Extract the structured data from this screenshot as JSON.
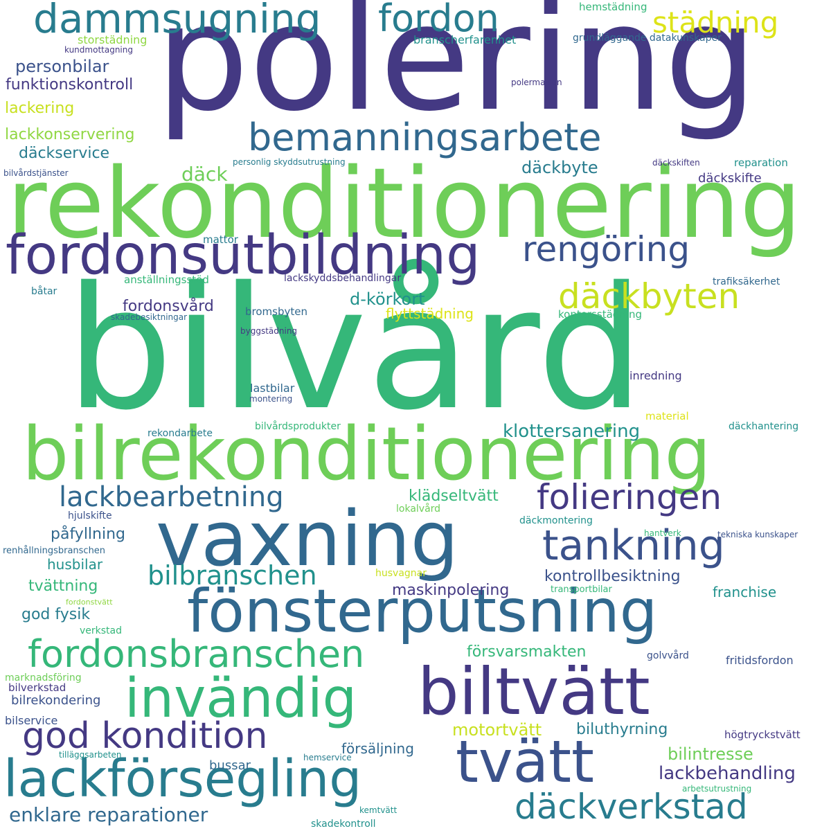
{
  "palette": {
    "background": "#ffffff",
    "dark_purple": "#443983",
    "indigo": "#3b528b",
    "blue": "#31688e",
    "teal_blue": "#287c8e",
    "teal": "#21918c",
    "green_teal": "#35b779",
    "light_green": "#6ece58",
    "lime": "#90d743",
    "yellow_green": "#c8e020",
    "yellow": "#dde318"
  },
  "words": [
    {
      "text": "bilvård"
    },
    {
      "text": "polering"
    },
    {
      "text": "rekonditionering"
    },
    {
      "text": "bilrekonditionering"
    },
    {
      "text": "vaxning"
    },
    {
      "text": "fönsterputsning"
    },
    {
      "text": "fordonsutbildning"
    },
    {
      "text": "biltvätt"
    },
    {
      "text": "invändig"
    },
    {
      "text": "tvätt"
    },
    {
      "text": "lackförsegling"
    },
    {
      "text": "dammsugning"
    },
    {
      "text": "bemanningsarbete"
    },
    {
      "text": "fordonsbranschen"
    },
    {
      "text": "tankning"
    },
    {
      "text": "fordon"
    },
    {
      "text": "god kondition"
    },
    {
      "text": "rengöring"
    },
    {
      "text": "folieringen"
    },
    {
      "text": "däckbyten"
    },
    {
      "text": "däckverkstad"
    },
    {
      "text": "lackbearbetning"
    },
    {
      "text": "bilbranschen"
    },
    {
      "text": "städning"
    },
    {
      "text": "enklare reparationer"
    },
    {
      "text": "klottersanering"
    },
    {
      "text": "lackbehandling"
    },
    {
      "text": "d-körkort"
    },
    {
      "text": "däck"
    },
    {
      "text": "däckbyte"
    },
    {
      "text": "personbilar"
    },
    {
      "text": "bilintresse"
    },
    {
      "text": "motortvätt"
    },
    {
      "text": "funktionskontroll"
    },
    {
      "text": "lackkonservering"
    },
    {
      "text": "biluthyrning"
    },
    {
      "text": "kontrollbesiktning"
    },
    {
      "text": "maskinpolering"
    },
    {
      "text": "lackering"
    },
    {
      "text": "fordonsvård"
    },
    {
      "text": "klädseltvätt"
    },
    {
      "text": "påfyllning"
    },
    {
      "text": "försvarsmakten"
    },
    {
      "text": "god fysik"
    },
    {
      "text": "däckservice"
    },
    {
      "text": "tvättning"
    },
    {
      "text": "franchise"
    },
    {
      "text": "husbilar"
    },
    {
      "text": "flyttstädning"
    },
    {
      "text": "försäljning"
    },
    {
      "text": "däckskifte"
    },
    {
      "text": "bussar"
    },
    {
      "text": "bilrekondering"
    },
    {
      "text": "branscherfarenhet"
    },
    {
      "text": "storstädning"
    },
    {
      "text": "bilservice"
    },
    {
      "text": "kontorsstädning"
    },
    {
      "text": "fritidsfordon"
    },
    {
      "text": "högtryckstvätt"
    },
    {
      "text": "bilverkstad"
    },
    {
      "text": "lastbilar"
    },
    {
      "text": "mattor"
    },
    {
      "text": "bromsbyten"
    },
    {
      "text": "inredning"
    },
    {
      "text": "anställningsstöd"
    },
    {
      "text": "reparation"
    },
    {
      "text": "trafiksäkerhet"
    },
    {
      "text": "lackskyddsbehandlingar"
    },
    {
      "text": "hemstädning"
    },
    {
      "text": "lokalvård"
    },
    {
      "text": "husvagnar"
    },
    {
      "text": "däckmontering"
    },
    {
      "text": "material"
    },
    {
      "text": "golvvård"
    },
    {
      "text": "marknadsföring"
    },
    {
      "text": "bilvårdsprodukter"
    },
    {
      "text": "rekondarbete"
    },
    {
      "text": "däckhantering"
    },
    {
      "text": "grundläggande datakunskaper"
    },
    {
      "text": "hjulskifte"
    },
    {
      "text": "verkstad"
    },
    {
      "text": "båtar"
    },
    {
      "text": "skadekontroll"
    },
    {
      "text": "personlig skyddsutrustning"
    },
    {
      "text": "transportbilar"
    },
    {
      "text": "renhållningsbranschen"
    },
    {
      "text": "bilvårdstjänster"
    },
    {
      "text": "montering"
    },
    {
      "text": "kundmottagning"
    },
    {
      "text": "polermaskin"
    },
    {
      "text": "däckskiften"
    },
    {
      "text": "skadebesiktningar"
    },
    {
      "text": "byggstädning"
    },
    {
      "text": "hantverk"
    },
    {
      "text": "tekniska kunskaper"
    },
    {
      "text": "fordonstvätt"
    },
    {
      "text": "tilläggsarbeten"
    },
    {
      "text": "hemservice"
    },
    {
      "text": "arbetsutrustning"
    },
    {
      "text": "kemtvätt"
    }
  ]
}
